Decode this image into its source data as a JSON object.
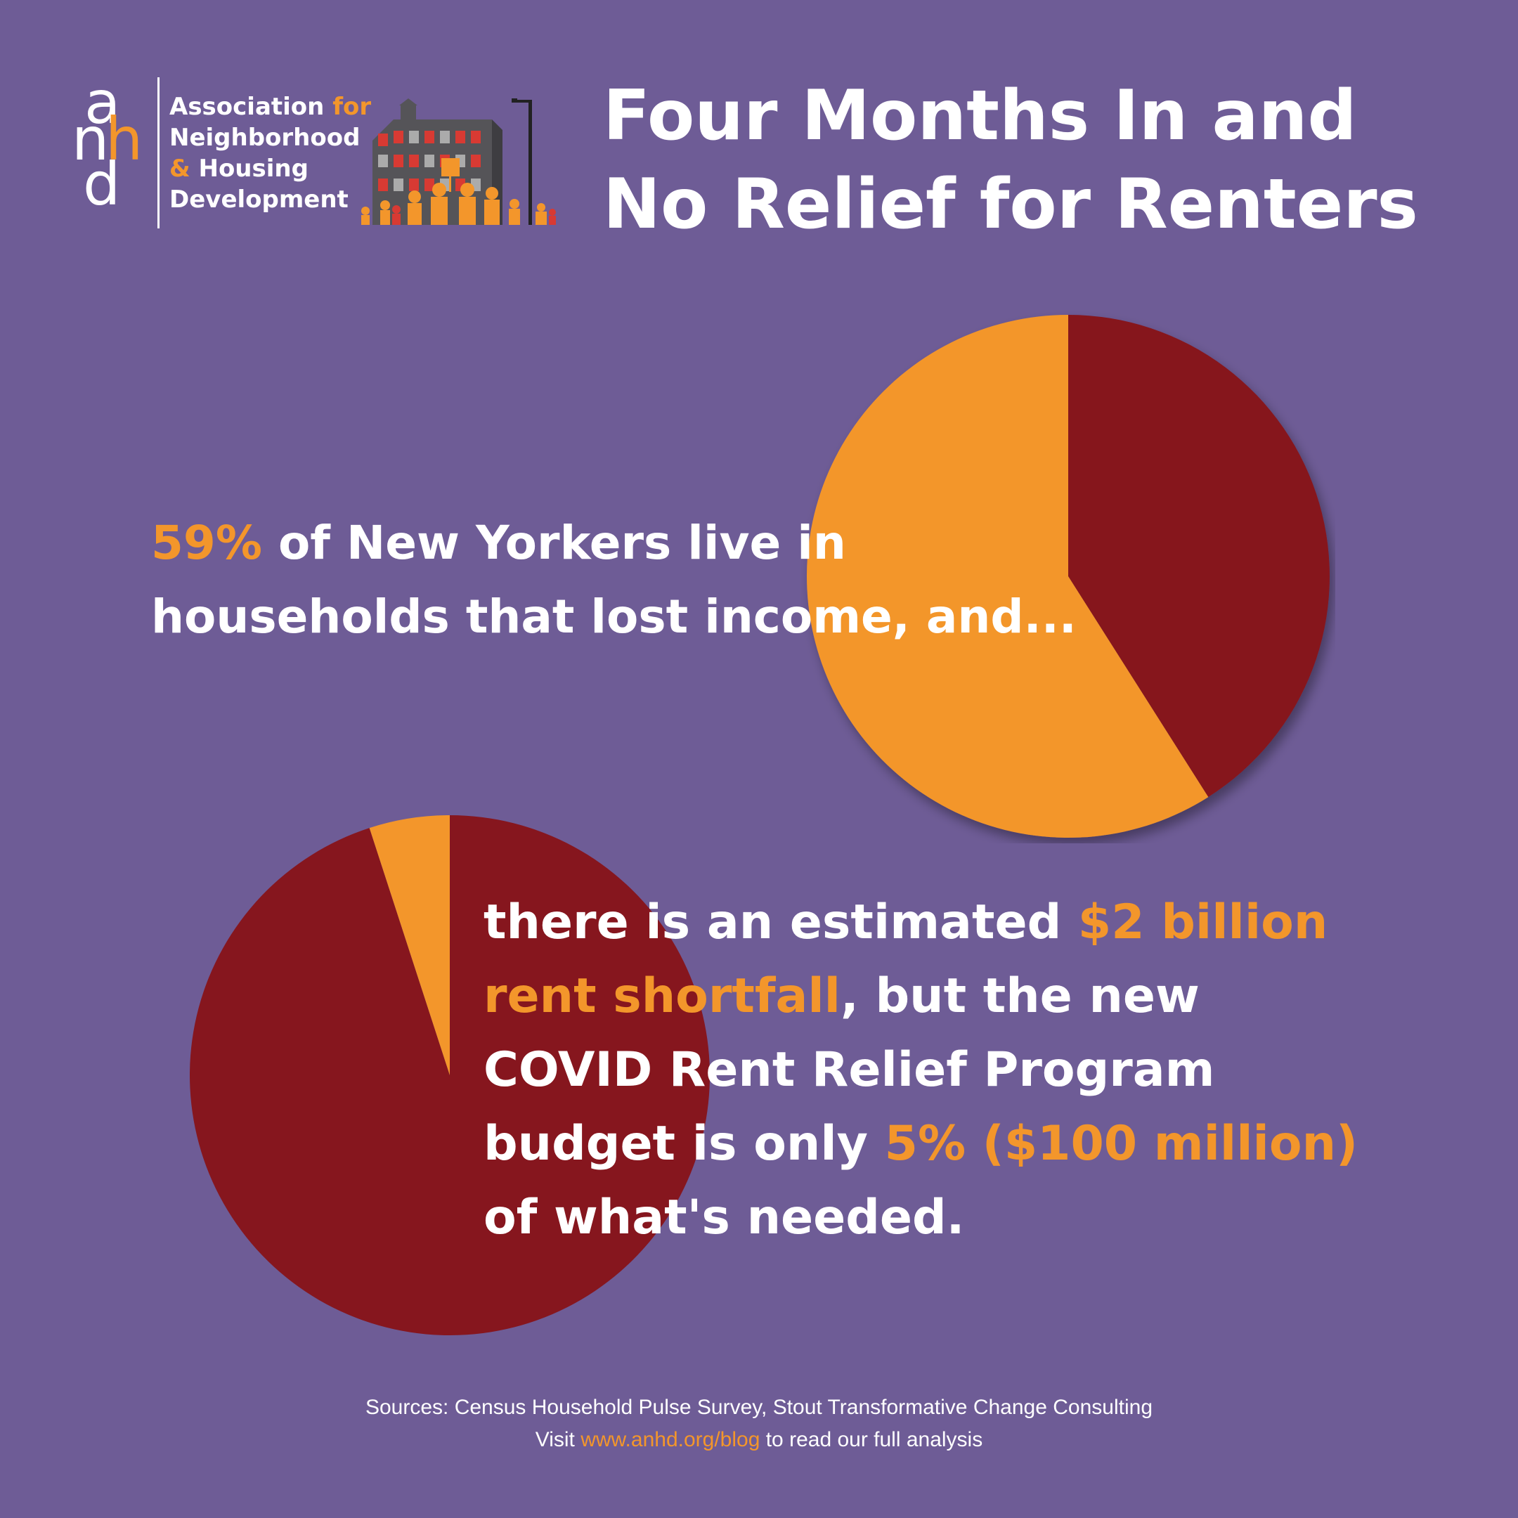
{
  "logo": {
    "letters": [
      "a",
      "n",
      "h",
      "d"
    ],
    "org_lines": [
      {
        "pre": "Association ",
        "accent": "for",
        "post": ""
      },
      {
        "pre": "Neighborhood",
        "accent": "",
        "post": ""
      },
      {
        "pre": "",
        "accent": "&",
        "post": " Housing"
      },
      {
        "pre": "Development",
        "accent": "",
        "post": ""
      }
    ]
  },
  "headline": {
    "line1": "Four Months In and",
    "line2": "No Relief for Renters"
  },
  "statement_top": {
    "highlight": "59%",
    "line1_rest": " of New Yorkers live in",
    "line2": "households that lost income, and..."
  },
  "statement_bottom": {
    "line1_pre": "there is an estimated ",
    "line1_highlight": "$2 billion",
    "line2_highlight": "rent shortfall",
    "line2_rest": ", but the new",
    "line3": "COVID Rent Relief Program",
    "line4_pre": "budget is only ",
    "line4_highlight": "5% ($100 million)",
    "line5": "of what's needed."
  },
  "footer": {
    "sources": "Sources: Census Household Pulse Survey, Stout Transformative Change Consulting",
    "visit_pre": "Visit ",
    "visit_link": "www.anhd.org/blog",
    "visit_post": " to read our full analysis"
  },
  "colors": {
    "background": "#6e5c96",
    "accent_orange": "#f3962b",
    "dark_red": "#86161e",
    "white": "#ffffff"
  },
  "chart_data": [
    {
      "type": "pie",
      "values": [
        59,
        41
      ],
      "colors": [
        "#f3962b",
        "#86161e"
      ],
      "start": "12 o'clock, counterclockwise for first slice"
    },
    {
      "type": "pie",
      "values": [
        5,
        95
      ],
      "colors": [
        "#f3962b",
        "#86161e"
      ],
      "start": "12 o'clock, counterclockwise for first slice"
    }
  ]
}
